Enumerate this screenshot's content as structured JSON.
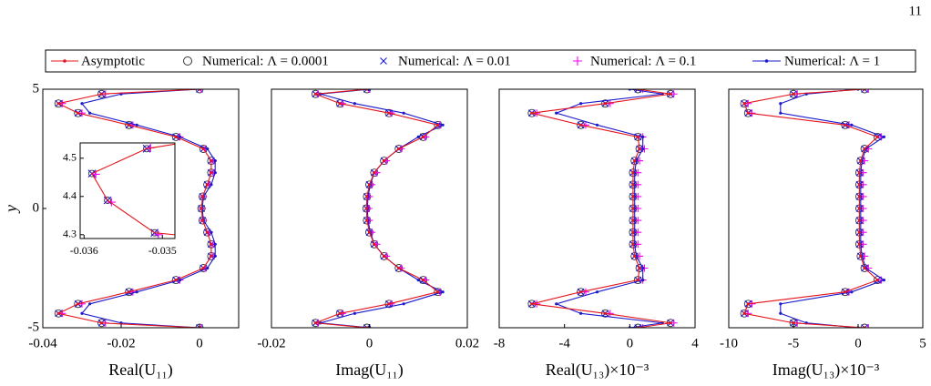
{
  "page_number": "11",
  "chart_data": [
    {
      "type": "line",
      "ylabel": "y",
      "xlabel": "Real(U₁₁)",
      "xlim": [
        -0.04,
        0.01
      ],
      "xticks": [
        -0.04,
        -0.02,
        0
      ],
      "ylim": [
        -5,
        5
      ],
      "yticks": [
        -5,
        0,
        5
      ],
      "y": [
        5,
        4.8,
        4.4,
        4,
        3.5,
        3,
        2.5,
        2,
        1.5,
        1,
        0.5,
        0,
        -0.5,
        -1,
        -1.5,
        -2,
        -2.5,
        -3,
        -3.5,
        -4,
        -4.4,
        -4.8,
        -5
      ],
      "series": [
        {
          "name": "Asymptotic",
          "color": "#e4141c",
          "marker": "line-dot",
          "values": [
            0,
            -0.025,
            -0.036,
            -0.031,
            -0.018,
            -0.006,
            0.001,
            0.003,
            0.003,
            0.002,
            0.0008,
            0.0005,
            0.0008,
            0.002,
            0.003,
            0.003,
            0.001,
            -0.006,
            -0.018,
            -0.031,
            -0.036,
            -0.025,
            0
          ]
        },
        {
          "name": "Numerical: Λ = 0.0001",
          "color": "#333333",
          "marker": "circle",
          "values": [
            0,
            -0.025,
            -0.036,
            -0.031,
            -0.018,
            -0.006,
            0.001,
            0.003,
            0.003,
            0.002,
            0.0008,
            0.0005,
            0.0008,
            0.002,
            0.003,
            0.003,
            0.001,
            -0.006,
            -0.018,
            -0.031,
            -0.036,
            -0.025,
            0
          ]
        },
        {
          "name": "Numerical: Λ = 0.01",
          "color": "#1a1ad8",
          "marker": "x",
          "values": [
            0,
            -0.025,
            -0.036,
            -0.031,
            -0.018,
            -0.006,
            0.001,
            0.003,
            0.003,
            0.002,
            0.0008,
            0.0005,
            0.0008,
            0.002,
            0.003,
            0.003,
            0.001,
            -0.006,
            -0.018,
            -0.031,
            -0.036,
            -0.025,
            0
          ]
        },
        {
          "name": "Numerical: Λ = 0.1",
          "color": "#ff00ff",
          "marker": "plus",
          "values": [
            0.0005,
            -0.024,
            -0.035,
            -0.03,
            -0.017,
            -0.005,
            0.0015,
            0.0035,
            0.0035,
            0.0025,
            0.001,
            0.0007,
            0.001,
            0.0025,
            0.0035,
            0.0035,
            0.0015,
            -0.005,
            -0.017,
            -0.03,
            -0.035,
            -0.024,
            0.0005
          ]
        },
        {
          "name": "Numerical: Λ = 1",
          "color": "#1a1acc",
          "marker": "line-dot",
          "values": [
            0,
            -0.02,
            -0.03,
            -0.028,
            -0.016,
            -0.005,
            0.002,
            0.004,
            0.004,
            0.003,
            0.001,
            0.0007,
            0.001,
            0.003,
            0.004,
            0.004,
            0.002,
            -0.005,
            -0.016,
            -0.028,
            -0.03,
            -0.02,
            0
          ]
        }
      ]
    },
    {
      "type": "line",
      "xlabel": "Imag(U₁₁)",
      "xlim": [
        -0.02,
        0.02
      ],
      "xticks": [
        -0.02,
        0,
        0.02
      ],
      "ylim": [
        -5,
        5
      ],
      "y": [
        5,
        4.8,
        4.4,
        4,
        3.5,
        3,
        2.5,
        2,
        1.5,
        1,
        0.5,
        0,
        -0.5,
        -1,
        -1.5,
        -2,
        -2.5,
        -3,
        -3.5,
        -4,
        -4.4,
        -4.8,
        -5
      ],
      "series": [
        {
          "color": "#e4141c",
          "marker": "line-dot",
          "values": [
            -0.0005,
            -0.011,
            -0.006,
            0.004,
            0.014,
            0.011,
            0.006,
            0.003,
            0.001,
            0,
            -0.0005,
            -0.0006,
            -0.0005,
            0,
            0.001,
            0.003,
            0.006,
            0.011,
            0.014,
            0.004,
            -0.006,
            -0.011,
            -0.0005
          ]
        },
        {
          "color": "#333333",
          "marker": "circle",
          "values": [
            -0.0005,
            -0.011,
            -0.006,
            0.004,
            0.014,
            0.011,
            0.006,
            0.003,
            0.001,
            0,
            -0.0005,
            -0.0006,
            -0.0005,
            0,
            0.001,
            0.003,
            0.006,
            0.011,
            0.014,
            0.004,
            -0.006,
            -0.011,
            -0.0005
          ]
        },
        {
          "color": "#1a1ad8",
          "marker": "x",
          "values": [
            -0.0005,
            -0.011,
            -0.006,
            0.004,
            0.014,
            0.011,
            0.006,
            0.003,
            0.001,
            0,
            -0.0005,
            -0.0006,
            -0.0005,
            0,
            0.001,
            0.003,
            0.006,
            0.011,
            0.014,
            0.004,
            -0.006,
            -0.011,
            -0.0005
          ]
        },
        {
          "color": "#ff00ff",
          "marker": "plus",
          "values": [
            0,
            -0.0105,
            -0.0055,
            0.0045,
            0.0145,
            0.0115,
            0.0065,
            0.0035,
            0.0015,
            0.0005,
            0,
            -0.0001,
            0,
            0.0005,
            0.0015,
            0.0035,
            0.0065,
            0.0115,
            0.0145,
            0.0045,
            -0.0055,
            -0.0105,
            0
          ]
        },
        {
          "color": "#1a1acc",
          "marker": "line-dot",
          "values": [
            0,
            -0.01,
            -0.003,
            0.007,
            0.015,
            0.01,
            0.006,
            0.003,
            0.001,
            0.0002,
            -0.0003,
            -0.0004,
            -0.0003,
            0.0002,
            0.001,
            0.003,
            0.006,
            0.01,
            0.015,
            0.007,
            -0.003,
            -0.01,
            0
          ]
        }
      ]
    },
    {
      "type": "line",
      "xlabel": "Real(U₁₃)×10⁻³",
      "xlim": [
        -8,
        4
      ],
      "xticks": [
        -8,
        -4,
        0,
        4
      ],
      "ylim": [
        -5,
        5
      ],
      "y": [
        5,
        4.8,
        4.4,
        4,
        3.5,
        3,
        2.5,
        2,
        1.5,
        1,
        0.5,
        0,
        -0.5,
        -1,
        -1.5,
        -2,
        -2.5,
        -3,
        -3.5,
        -4,
        -4.4,
        -4.8,
        -5
      ],
      "series": [
        {
          "color": "#e4141c",
          "marker": "line-dot",
          "values": [
            0.5,
            2.5,
            -1.5,
            -6,
            -3,
            0.5,
            0.6,
            0.3,
            0.2,
            0.2,
            0.2,
            0.2,
            0.2,
            0.2,
            0.2,
            0.3,
            0.6,
            0.5,
            -3,
            -6,
            -1.5,
            2.5,
            0.5
          ]
        },
        {
          "color": "#333333",
          "marker": "circle",
          "values": [
            0.5,
            2.5,
            -1.5,
            -6,
            -3,
            0.5,
            0.6,
            0.3,
            0.2,
            0.2,
            0.2,
            0.2,
            0.2,
            0.2,
            0.2,
            0.3,
            0.6,
            0.5,
            -3,
            -6,
            -1.5,
            2.5,
            0.5
          ]
        },
        {
          "color": "#1a1ad8",
          "marker": "x",
          "values": [
            0.5,
            2.5,
            -1.5,
            -6,
            -3,
            0.5,
            0.6,
            0.3,
            0.2,
            0.2,
            0.2,
            0.2,
            0.2,
            0.2,
            0.2,
            0.3,
            0.6,
            0.5,
            -3,
            -6,
            -1.5,
            2.5,
            0.5
          ]
        },
        {
          "color": "#ff00ff",
          "marker": "plus",
          "values": [
            0.8,
            2.7,
            -1.2,
            -5.7,
            -2.7,
            0.8,
            0.9,
            0.6,
            0.5,
            0.5,
            0.5,
            0.5,
            0.5,
            0.5,
            0.5,
            0.6,
            0.9,
            0.8,
            -2.7,
            -5.7,
            -1.2,
            2.7,
            0.8
          ]
        },
        {
          "color": "#1a1acc",
          "marker": "line-dot",
          "values": [
            0,
            2,
            -3,
            -4.5,
            -2,
            0.8,
            0.8,
            0.4,
            0.3,
            0.3,
            0.3,
            0.3,
            0.3,
            0.3,
            0.3,
            0.4,
            0.8,
            0.8,
            -2,
            -4.5,
            -3,
            2,
            0
          ]
        }
      ]
    },
    {
      "type": "line",
      "xlabel": "Imag(U₁₃)×10⁻³",
      "xlim": [
        -10,
        5
      ],
      "xticks": [
        -10,
        -5,
        0,
        5
      ],
      "ylim": [
        -5,
        5
      ],
      "y": [
        5,
        4.8,
        4.4,
        4,
        3.5,
        3,
        2.5,
        2,
        1.5,
        1,
        0.5,
        0,
        -0.5,
        -1,
        -1.5,
        -2,
        -2.5,
        -3,
        -3.5,
        -4,
        -4.4,
        -4.8,
        -5
      ],
      "series": [
        {
          "color": "#e4141c",
          "marker": "line-dot",
          "values": [
            0.5,
            -5,
            -8.8,
            -8.5,
            -1,
            1.5,
            0.5,
            0.2,
            0.1,
            0.1,
            0.1,
            0.1,
            0.1,
            0.1,
            0.1,
            0.2,
            0.5,
            1.5,
            -1,
            -8.5,
            -8.8,
            -5,
            0.5
          ]
        },
        {
          "color": "#333333",
          "marker": "circle",
          "values": [
            0.5,
            -5,
            -8.8,
            -8.5,
            -1,
            1.5,
            0.5,
            0.2,
            0.1,
            0.1,
            0.1,
            0.1,
            0.1,
            0.1,
            0.1,
            0.2,
            0.5,
            1.5,
            -1,
            -8.5,
            -8.8,
            -5,
            0.5
          ]
        },
        {
          "color": "#1a1ad8",
          "marker": "x",
          "values": [
            0.5,
            -5,
            -8.8,
            -8.5,
            -1,
            1.5,
            0.5,
            0.2,
            0.1,
            0.1,
            0.1,
            0.1,
            0.1,
            0.1,
            0.1,
            0.2,
            0.5,
            1.5,
            -1,
            -8.5,
            -8.8,
            -5,
            0.5
          ]
        },
        {
          "color": "#ff00ff",
          "marker": "plus",
          "values": [
            0.8,
            -4.7,
            -8.5,
            -8.2,
            -0.7,
            1.8,
            0.8,
            0.5,
            0.4,
            0.4,
            0.4,
            0.4,
            0.4,
            0.4,
            0.4,
            0.5,
            0.8,
            1.8,
            -0.7,
            -8.2,
            -8.5,
            -4.7,
            0.8
          ]
        },
        {
          "color": "#1a1acc",
          "marker": "line-dot",
          "values": [
            0,
            -4,
            -6,
            -6,
            -0.5,
            2,
            0.6,
            0.3,
            0.2,
            0.2,
            0.2,
            0.2,
            0.2,
            0.2,
            0.2,
            0.3,
            0.6,
            2,
            -0.5,
            -6,
            -6,
            -4,
            0
          ]
        }
      ]
    },
    {
      "type": "line",
      "xlim": [
        -0.03605,
        -0.03484
      ],
      "xticks": [
        -0.036,
        -0.035
      ],
      "ylim": [
        4.29,
        4.54
      ],
      "yticks": [
        4.3,
        4.4,
        4.5
      ],
      "series": [
        {
          "color": "#e4141c",
          "marker": "line",
          "values": [
            -0.0346,
            -0.0352,
            -0.0359,
            -0.0357,
            -0.0351,
            -0.0346
          ],
          "y": [
            4.545,
            4.525,
            4.46,
            4.39,
            4.305,
            4.295
          ]
        },
        {
          "color": "#333333",
          "marker": "circle",
          "values": [
            -0.0352,
            -0.0359,
            -0.0357,
            -0.0351
          ],
          "y": [
            4.525,
            4.46,
            4.39,
            4.305
          ]
        },
        {
          "color": "#1a1ad8",
          "marker": "x",
          "values": [
            -0.0352,
            -0.0359,
            -0.0357,
            -0.0351
          ],
          "y": [
            4.525,
            4.46,
            4.39,
            4.305
          ]
        },
        {
          "color": "#ff00ff",
          "marker": "plus",
          "values": [
            -0.03515,
            -0.03585,
            -0.03565,
            -0.03505
          ],
          "y": [
            4.527,
            4.458,
            4.385,
            4.3
          ]
        }
      ]
    }
  ]
}
